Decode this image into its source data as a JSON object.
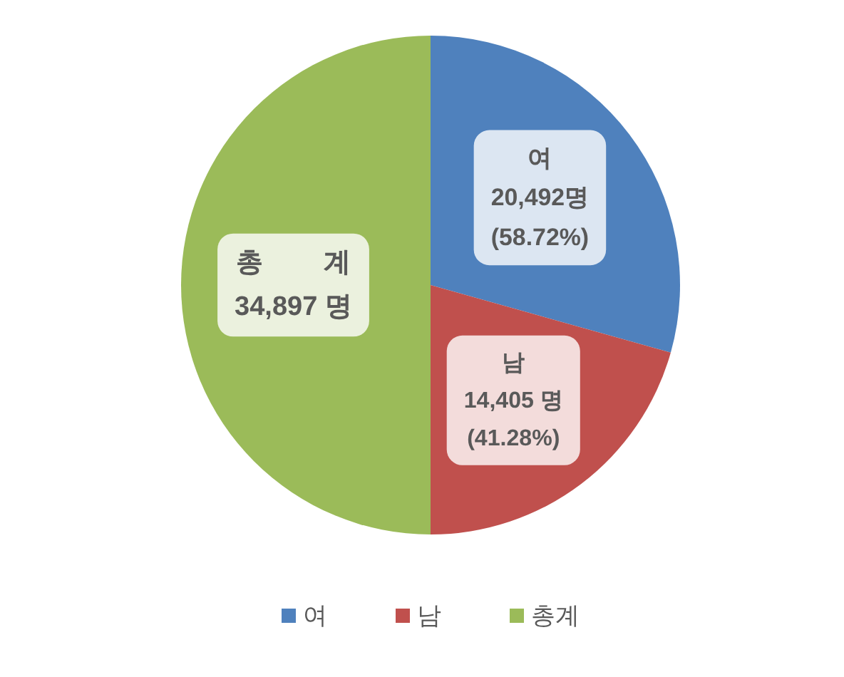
{
  "chart_data": {
    "type": "pie",
    "categories": [
      "여",
      "남",
      "총계"
    ],
    "values": [
      20492,
      14405,
      34897
    ],
    "colors": [
      "#4f81bd",
      "#c0504d",
      "#9bbb59"
    ],
    "value_labels": [
      "여\n20,492명\n(58.72%)",
      "남\n14,405 명\n(41.28%)",
      "총        계\n34,897 명"
    ],
    "legend": "bottom"
  }
}
